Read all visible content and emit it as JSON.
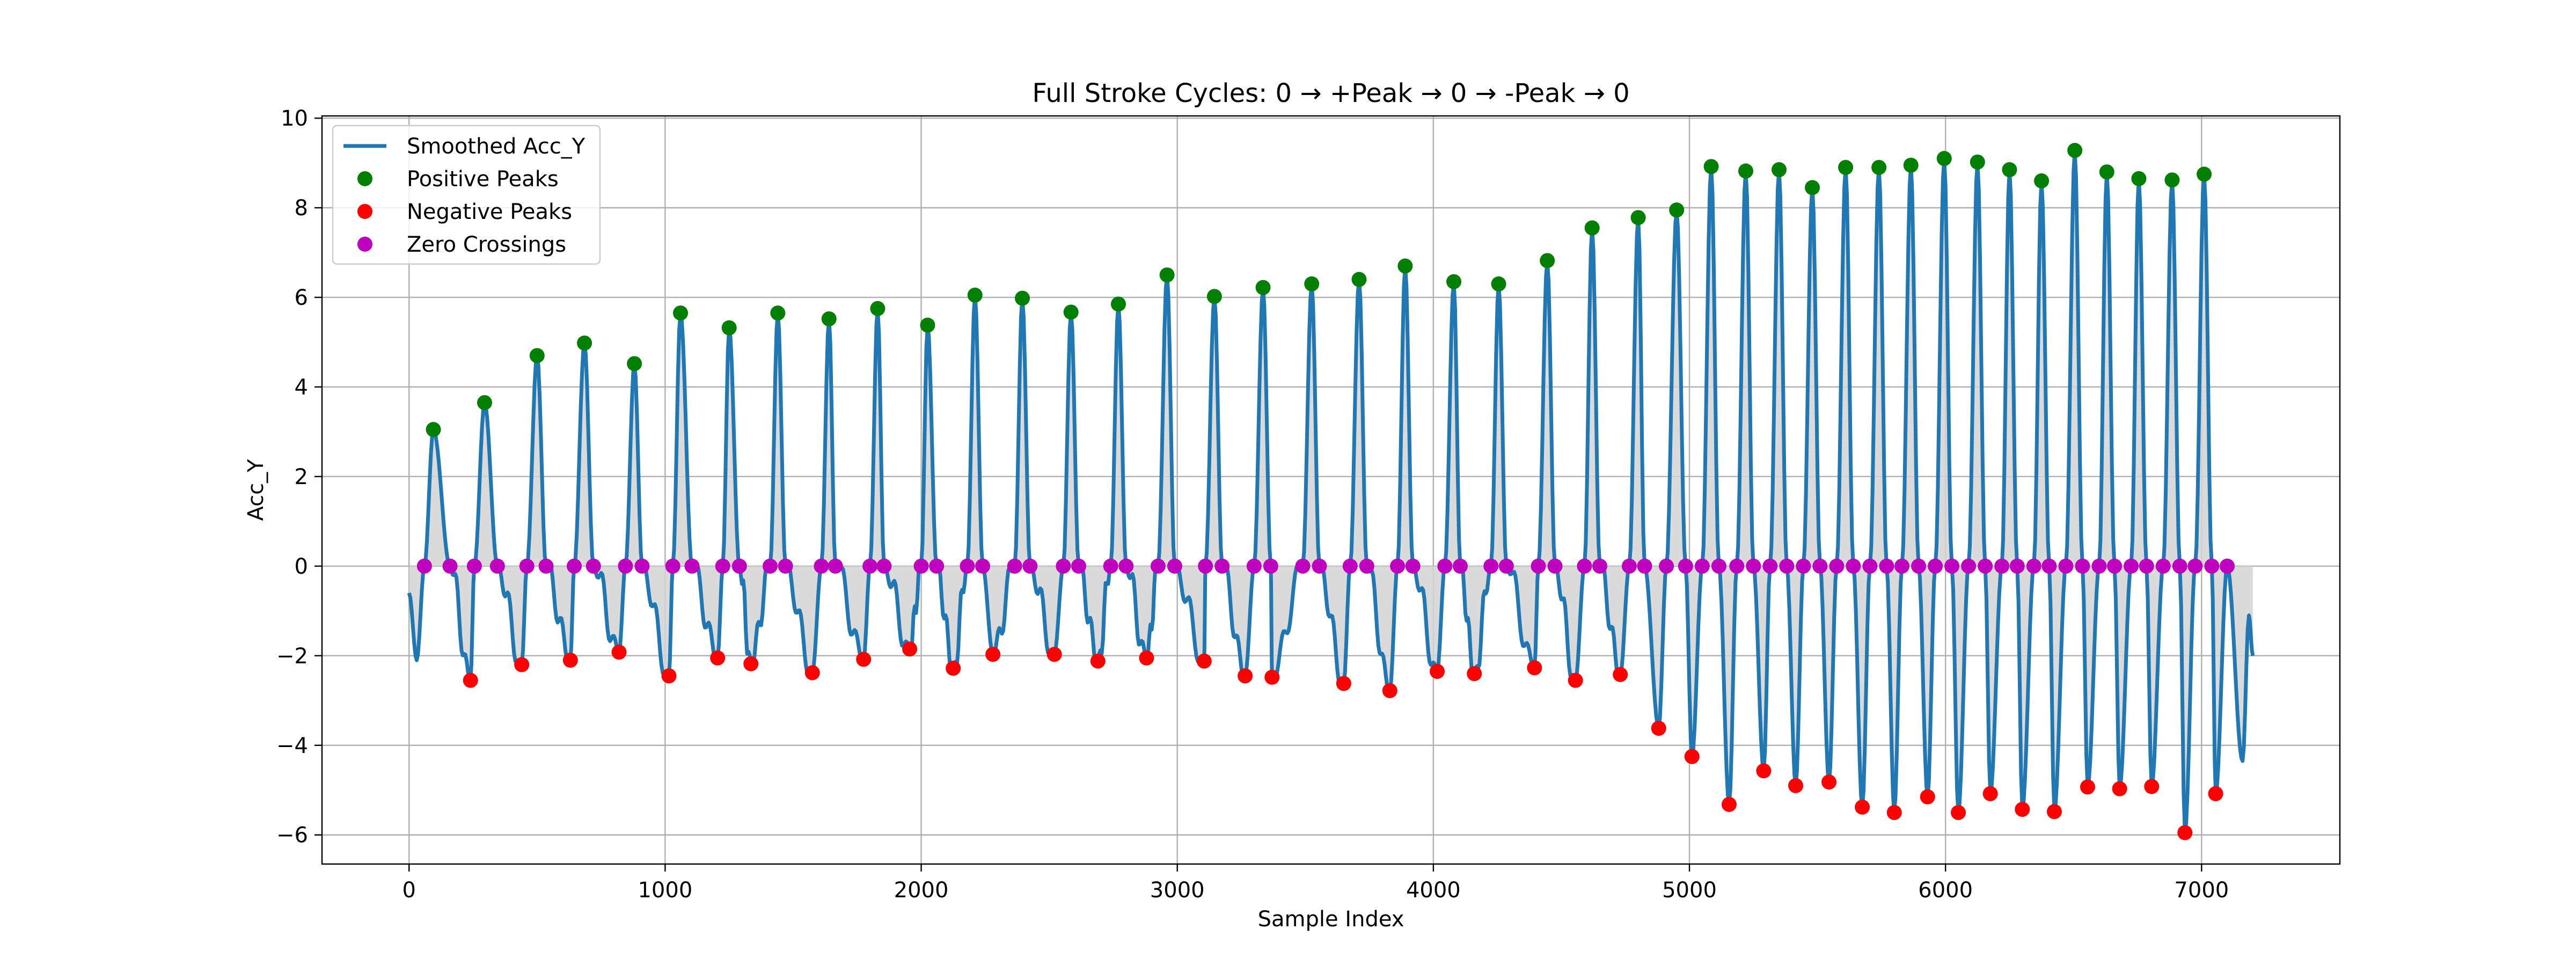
{
  "chart_data": {
    "type": "line",
    "title": "Full Stroke Cycles: 0 → +Peak → 0 → -Peak → 0",
    "xlabel": "Sample Index",
    "ylabel": "Acc_Y",
    "xlim": [
      -340,
      7540
    ],
    "ylim": [
      -6.65,
      10.05
    ],
    "xticks": [
      0,
      1000,
      2000,
      3000,
      4000,
      5000,
      6000,
      7000
    ],
    "yticks": [
      -6,
      -4,
      -2,
      0,
      2,
      4,
      6,
      8,
      10
    ],
    "xtick_labels": [
      "0",
      "1000",
      "2000",
      "3000",
      "4000",
      "5000",
      "6000",
      "7000"
    ],
    "ytick_labels": [
      "−6",
      "−4",
      "−2",
      "0",
      "2",
      "4",
      "6",
      "8",
      "10"
    ],
    "grid": true,
    "legend_position": "top-left",
    "colors": {
      "line": "#1f77b4",
      "positive": "#008000",
      "negative": "#ff0000",
      "zero": "#bf00bf",
      "fill": "#d3d3d3"
    },
    "series": [
      {
        "name": "Smoothed Acc_Y",
        "kind": "line"
      },
      {
        "name": "Positive Peaks",
        "kind": "markers",
        "x": [
          95,
          295,
          500,
          685,
          880,
          1060,
          1250,
          1440,
          1640,
          1830,
          2025,
          2210,
          2395,
          2585,
          2770,
          2960,
          3145,
          3335,
          3525,
          3710,
          3890,
          4080,
          4255,
          4445,
          4620,
          4800,
          4950,
          5085,
          5220,
          5350,
          5480,
          5610,
          5740,
          5865,
          5995,
          6125,
          6250,
          6375,
          6505,
          6630,
          6755,
          6885,
          7010
        ],
        "y": [
          3.05,
          3.65,
          4.7,
          4.98,
          4.52,
          5.65,
          5.32,
          5.65,
          5.52,
          5.75,
          5.38,
          6.05,
          5.98,
          5.67,
          5.85,
          6.5,
          6.02,
          6.22,
          6.3,
          6.4,
          6.7,
          6.35,
          6.3,
          6.82,
          7.55,
          7.78,
          7.95,
          8.92,
          8.82,
          8.85,
          8.45,
          8.9,
          8.9,
          8.95,
          9.1,
          9.02,
          8.85,
          8.6,
          9.28,
          8.8,
          8.65,
          8.62,
          8.75
        ]
      },
      {
        "name": "Negative Peaks",
        "kind": "markers",
        "x": [
          240,
          440,
          630,
          820,
          1015,
          1205,
          1335,
          1575,
          1775,
          1955,
          2125,
          2280,
          2520,
          2690,
          2880,
          3105,
          3265,
          3370,
          3650,
          3830,
          4015,
          4160,
          4395,
          4555,
          4730,
          4880,
          5010,
          5155,
          5290,
          5415,
          5545,
          5675,
          5800,
          5930,
          6050,
          6175,
          6300,
          6425,
          6555,
          6680,
          6805,
          6935,
          7055
        ],
        "y": [
          -2.55,
          -2.2,
          -2.1,
          -1.92,
          -2.45,
          -2.05,
          -2.18,
          -2.38,
          -2.08,
          -1.85,
          -2.28,
          -1.97,
          -1.97,
          -2.12,
          -2.05,
          -2.12,
          -2.45,
          -2.48,
          -2.62,
          -2.78,
          -2.35,
          -2.4,
          -2.27,
          -2.55,
          -2.42,
          -3.62,
          -4.25,
          -5.32,
          -4.57,
          -4.9,
          -4.82,
          -5.38,
          -5.5,
          -5.15,
          -5.5,
          -5.08,
          -5.43,
          -5.48,
          -4.93,
          -4.97,
          -4.92,
          -5.95,
          -5.08
        ]
      },
      {
        "name": "Zero Crossings",
        "kind": "markers",
        "x": [
          60,
          160,
          255,
          345,
          460,
          535,
          645,
          720,
          845,
          910,
          1030,
          1105,
          1225,
          1290,
          1410,
          1470,
          1610,
          1665,
          1800,
          1855,
          2000,
          2060,
          2180,
          2240,
          2365,
          2425,
          2555,
          2615,
          2740,
          2800,
          2925,
          2990,
          3110,
          3175,
          3300,
          3365,
          3490,
          3555,
          3675,
          3740,
          3860,
          3920,
          4045,
          4105,
          4225,
          4285,
          4410,
          4475,
          4590,
          4650,
          4765,
          4825,
          4910,
          4985,
          5050,
          5115,
          5185,
          5250,
          5315,
          5380,
          5445,
          5510,
          5575,
          5640,
          5705,
          5770,
          5830,
          5895,
          5960,
          6025,
          6090,
          6155,
          6220,
          6280,
          6345,
          6405,
          6470,
          6535,
          6600,
          6660,
          6725,
          6785,
          6850,
          6915,
          6975,
          7040,
          7100
        ],
        "y": [
          0,
          0,
          0,
          0,
          0,
          0,
          0,
          0,
          0,
          0,
          0,
          0,
          0,
          0,
          0,
          0,
          0,
          0,
          0,
          0,
          0,
          0,
          0,
          0,
          0,
          0,
          0,
          0,
          0,
          0,
          0,
          0,
          0,
          0,
          0,
          0,
          0,
          0,
          0,
          0,
          0,
          0,
          0,
          0,
          0,
          0,
          0,
          0,
          0,
          0,
          0,
          0,
          0,
          0,
          0,
          0,
          0,
          0,
          0,
          0,
          0,
          0,
          0,
          0,
          0,
          0,
          0,
          0,
          0,
          0,
          0,
          0,
          0,
          0,
          0,
          0,
          0,
          0,
          0,
          0,
          0,
          0,
          0,
          0,
          0,
          0,
          0
        ]
      }
    ]
  }
}
